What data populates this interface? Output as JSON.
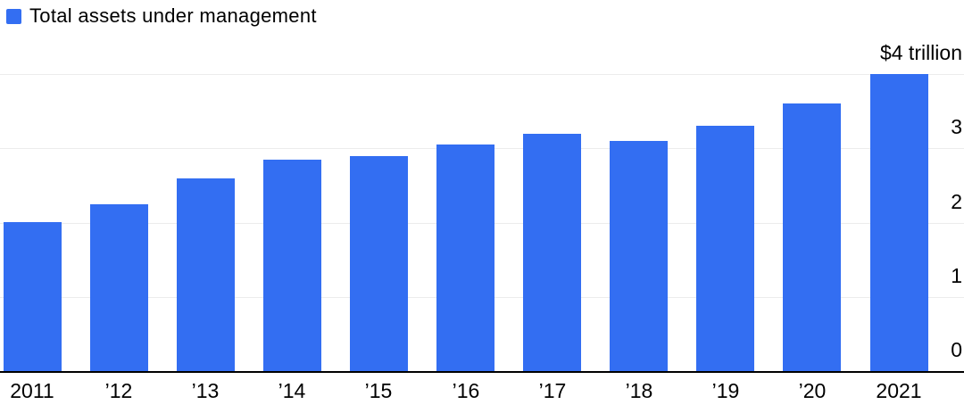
{
  "legend": {
    "label": "Total assets under management",
    "marker_color": "#336EF2"
  },
  "chart_data": {
    "type": "bar",
    "title": "Total assets under management",
    "categories": [
      "2011",
      "’12",
      "’13",
      "’14",
      "’15",
      "’16",
      "’17",
      "’18",
      "’19",
      "’20",
      "2021"
    ],
    "values": [
      2.0,
      2.25,
      2.6,
      2.85,
      2.9,
      3.05,
      3.2,
      3.1,
      3.3,
      3.6,
      4.0
    ],
    "unit": "USD trillions",
    "xlabel": "",
    "ylabel": "",
    "ylim": [
      0,
      4
    ],
    "y_tick_labels": [
      {
        "label": "$4 trillion",
        "value": 4
      },
      {
        "label": "3",
        "value": 3
      },
      {
        "label": "2",
        "value": 2
      },
      {
        "label": "1",
        "value": 1
      },
      {
        "label": "0",
        "value": 0
      }
    ],
    "grid": true,
    "legend_position": "top-left",
    "bar_color": "#336EF2",
    "gridline_color": "#ececec",
    "axis_color": "#000000",
    "text_color": "#000000"
  }
}
